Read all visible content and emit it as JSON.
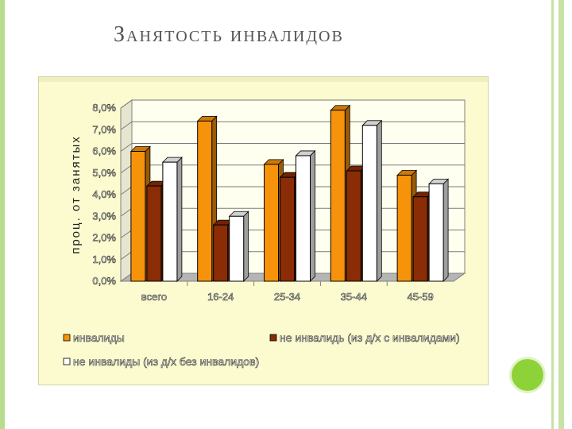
{
  "slide": {
    "title": "Занятость инвалидов"
  },
  "colors": {
    "orange": "#f7930a",
    "brown": "#8a2c05",
    "white": "#ffffff",
    "frame_bg": "#fbfbcf",
    "plot_bg": "#fffff0",
    "floor": "#b5b5b5",
    "accent_green": "#8ed23a"
  },
  "chart_data": {
    "type": "bar",
    "style": "3d-clustered",
    "categories": [
      "всего",
      "16-24",
      "25-34",
      "35-44",
      "45-59"
    ],
    "series": [
      {
        "name": "инвалиды",
        "color": "#f7930a",
        "values": [
          6.0,
          7.4,
          5.4,
          7.9,
          4.9
        ]
      },
      {
        "name": "не инвалидь (из д/х с инвалидами)",
        "color": "#8a2c05",
        "values": [
          4.4,
          2.6,
          4.8,
          5.1,
          3.9
        ]
      },
      {
        "name": "не инвалиды (из д/х без инвалидов)",
        "color": "#ffffff",
        "values": [
          5.5,
          3.0,
          5.8,
          7.2,
          4.5
        ]
      }
    ],
    "ylabel": "проц. от занятых",
    "ylim": [
      0,
      8
    ],
    "yticks": [
      "0,0%",
      "1,0%",
      "2,0%",
      "3,0%",
      "4,0%",
      "5,0%",
      "6,0%",
      "7,0%",
      "8,0%"
    ],
    "grid": true,
    "legend_position": "bottom"
  }
}
